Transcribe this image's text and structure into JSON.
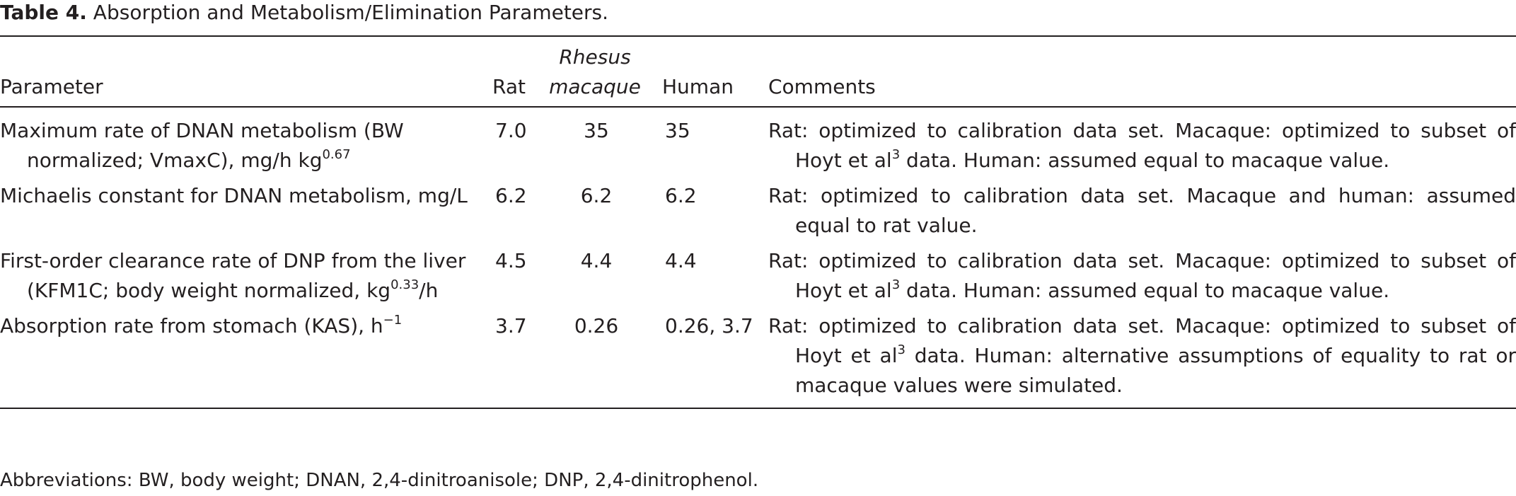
{
  "caption": {
    "label": "Table 4.",
    "text": "Absorption and Metabolism/Elimination Parameters."
  },
  "table": {
    "header": [
      "Parameter",
      "Rat",
      "Rhesus macaque",
      "Human",
      "Comments"
    ],
    "rows": [
      [
        [
          "Maximum rate of DNAN metabolism (BW normalized; VmaxC), mg/h kg",
          {
            "sup": "0.67"
          }
        ],
        [
          "7.0"
        ],
        [
          "35"
        ],
        [
          "35"
        ],
        [
          "Rat: optimized to calibration data set. Macaque: optimized to subset of Hoyt et al",
          {
            "sup": "3"
          },
          " data. Human: assumed equal to macaque value."
        ]
      ],
      [
        [
          "Michaelis constant for DNAN metabolism, mg/L"
        ],
        [
          "6.2"
        ],
        [
          "6.2"
        ],
        [
          "6.2"
        ],
        [
          "Rat: optimized to calibration data set. Macaque and human: assumed equal to rat value."
        ]
      ],
      [
        [
          "First-order clearance rate of DNP from the liver (KFM1C; body weight normalized, kg",
          {
            "sup": "0.33"
          },
          "/h"
        ],
        [
          "4.5"
        ],
        [
          "4.4"
        ],
        [
          "4.4"
        ],
        [
          "Rat: optimized to calibration data set. Macaque: optimized to subset of Hoyt et al",
          {
            "sup": "3"
          },
          " data. Human: assumed equal to macaque value."
        ]
      ],
      [
        [
          "Absorption rate from stomach (KAS), h",
          {
            "sup": "−1"
          }
        ],
        [
          "3.7"
        ],
        [
          "0.26"
        ],
        [
          "0.26, 3.7"
        ],
        [
          "Rat: optimized to calibration data set. Macaque: optimized to subset of Hoyt et al",
          {
            "sup": "3"
          },
          " data. Human: alternative assumptions of equality to rat or macaque values were simulated."
        ]
      ]
    ]
  },
  "footnote": "Abbreviations: BW, body weight; DNAN, 2,4-dinitroanisole; DNP, 2,4-dinitrophenol."
}
